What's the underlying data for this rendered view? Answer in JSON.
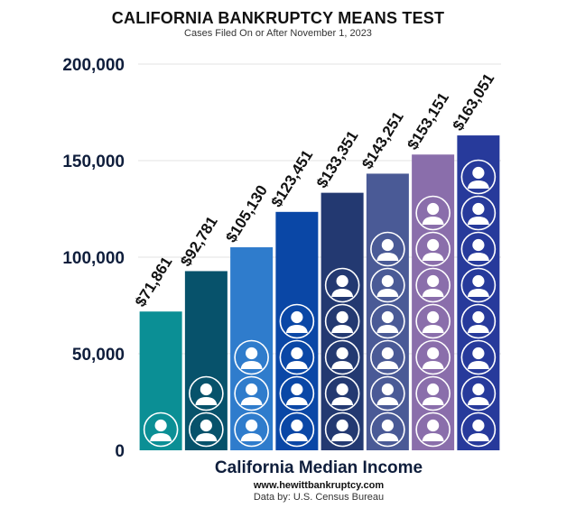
{
  "chart_data": {
    "type": "bar",
    "title": "CALIFORNIA BANKRUPTCY MEANS TEST",
    "subtitle": "Cases Filed On or After November 1, 2023",
    "xlabel": "California Median Income",
    "ylabel": "",
    "ylim": [
      0,
      200000
    ],
    "yticks": [
      0,
      50000,
      100000,
      150000,
      200000
    ],
    "ytick_labels": [
      "0",
      "50,000",
      "100,000",
      "150,000",
      "200,000"
    ],
    "grid": true,
    "categories": [
      "1",
      "2",
      "3",
      "4",
      "5",
      "6",
      "7",
      "8"
    ],
    "household_icons": [
      1,
      2,
      3,
      4,
      5,
      6,
      7,
      8
    ],
    "values": [
      71861,
      92781,
      105130,
      123451,
      133351,
      143251,
      153151,
      163051
    ],
    "value_labels": [
      "$71,861",
      "$92,781",
      "$105,130",
      "$123,451",
      "$133,351",
      "$143,251",
      "$153,151",
      "$163,051"
    ],
    "colors": [
      "#0b8f95",
      "#07526b",
      "#2f7ccc",
      "#0a47a6",
      "#233971",
      "#4a5a96",
      "#8a6eab",
      "#273a9b"
    ]
  },
  "footer": {
    "website": "www.hewittbankruptcy.com",
    "source": "Data by: U.S. Census Bureau"
  }
}
